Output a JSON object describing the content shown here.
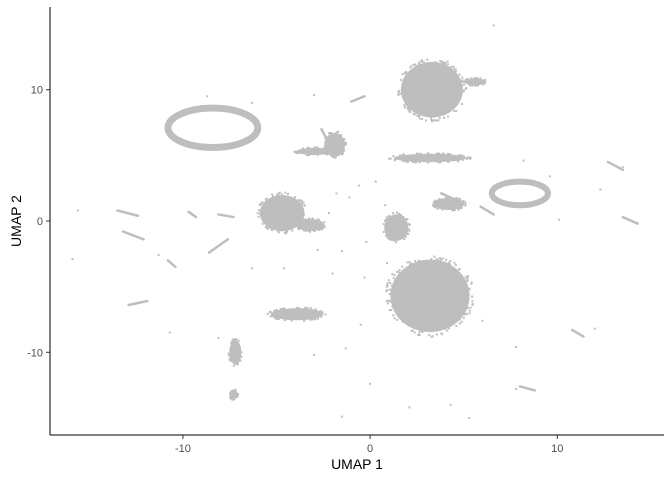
{
  "chart_data": {
    "type": "scatter",
    "title": "",
    "xlabel": "UMAP 1",
    "ylabel": "UMAP 2",
    "xlim": [
      -17.1,
      15.7
    ],
    "ylim": [
      -16.3,
      16.3
    ],
    "x_ticks": [
      -10,
      0,
      10
    ],
    "y_ticks": [
      -10,
      0,
      10
    ],
    "x_tick_labels": [
      "-10",
      "0",
      "10"
    ],
    "y_tick_labels": [
      "-10",
      "0",
      "10"
    ],
    "grid": false,
    "legend": "none",
    "point_color": "#bebebe",
    "clusters": [
      {
        "name": "top-blob",
        "kind": "blob",
        "cx": 3.3,
        "cy": 10.0,
        "rx": 1.8,
        "ry": 2.3
      },
      {
        "name": "top-blob-tail",
        "kind": "blob",
        "cx": 5.6,
        "cy": 10.6,
        "rx": 0.6,
        "ry": 0.3
      },
      {
        "name": "left-ring",
        "kind": "ring",
        "cx": -8.4,
        "cy": 7.1,
        "rx": 2.4,
        "ry": 1.5
      },
      {
        "name": "mid-left-cluster",
        "kind": "blob",
        "cx": -1.9,
        "cy": 5.8,
        "rx": 0.6,
        "ry": 1.0
      },
      {
        "name": "mid-left-band",
        "kind": "blob",
        "cx": -3.0,
        "cy": 5.3,
        "rx": 1.0,
        "ry": 0.3
      },
      {
        "name": "center-streak",
        "kind": "blob",
        "cx": 3.2,
        "cy": 4.8,
        "rx": 2.1,
        "ry": 0.35
      },
      {
        "name": "left-center-blob",
        "kind": "blob",
        "cx": -4.7,
        "cy": 0.6,
        "rx": 1.3,
        "ry": 1.5
      },
      {
        "name": "left-center-arm",
        "kind": "blob",
        "cx": -3.2,
        "cy": -0.3,
        "rx": 0.8,
        "ry": 0.5
      },
      {
        "name": "center-chain",
        "kind": "blob",
        "cx": 1.4,
        "cy": -0.5,
        "rx": 0.7,
        "ry": 1.1
      },
      {
        "name": "bottom-blob",
        "kind": "blob",
        "cx": 3.2,
        "cy": -5.7,
        "rx": 2.3,
        "ry": 3.0
      },
      {
        "name": "right-loop",
        "kind": "ring",
        "cx": 8.0,
        "cy": 2.1,
        "rx": 1.5,
        "ry": 0.9
      },
      {
        "name": "right-arm",
        "kind": "blob",
        "cx": 4.2,
        "cy": 1.3,
        "rx": 0.9,
        "ry": 0.5
      },
      {
        "name": "lower-left-patch",
        "kind": "blob",
        "cx": -7.2,
        "cy": -10.0,
        "rx": 0.35,
        "ry": 1.0
      },
      {
        "name": "bottom-left-patch",
        "kind": "blob",
        "cx": -7.3,
        "cy": -13.2,
        "rx": 0.25,
        "ry": 0.4
      },
      {
        "name": "lower-left-strand",
        "kind": "blob",
        "cx": -3.9,
        "cy": -7.1,
        "rx": 1.5,
        "ry": 0.5
      }
    ],
    "strands": [
      {
        "name": "strand-a",
        "x1": -8.6,
        "y1": -2.4,
        "x2": -7.6,
        "y2": -1.4
      },
      {
        "name": "strand-b",
        "x1": -12.9,
        "y1": -6.4,
        "x2": -11.9,
        "y2": -6.1
      },
      {
        "name": "strand-c",
        "x1": -13.5,
        "y1": 0.8,
        "x2": -12.4,
        "y2": 0.4
      },
      {
        "name": "strand-d",
        "x1": -13.2,
        "y1": -0.8,
        "x2": -12.1,
        "y2": -1.4
      },
      {
        "name": "strand-e",
        "x1": 12.7,
        "y1": 4.5,
        "x2": 13.5,
        "y2": 3.9
      },
      {
        "name": "strand-f",
        "x1": 13.5,
        "y1": 0.3,
        "x2": 14.3,
        "y2": -0.2
      },
      {
        "name": "strand-g",
        "x1": 10.8,
        "y1": -8.3,
        "x2": 11.4,
        "y2": -8.8
      },
      {
        "name": "strand-h",
        "x1": 8.0,
        "y1": -12.6,
        "x2": 8.8,
        "y2": -12.9
      },
      {
        "name": "strand-i",
        "x1": -1.0,
        "y1": 9.1,
        "x2": -0.3,
        "y2": 9.5
      },
      {
        "name": "strand-j",
        "x1": -8.1,
        "y1": 0.5,
        "x2": -7.3,
        "y2": 0.3
      },
      {
        "name": "strand-k",
        "x1": 3.8,
        "y1": 2.1,
        "x2": 4.6,
        "y2": 1.6
      },
      {
        "name": "strand-l",
        "x1": -2.6,
        "y1": 7.0,
        "x2": -2.3,
        "y2": 6.2
      },
      {
        "name": "strand-m",
        "x1": -9.7,
        "y1": 0.7,
        "x2": -9.3,
        "y2": 0.3
      },
      {
        "name": "strand-n",
        "x1": -10.8,
        "y1": -3.0,
        "x2": -10.4,
        "y2": -3.5
      },
      {
        "name": "strand-o",
        "x1": 5.9,
        "y1": 1.1,
        "x2": 6.6,
        "y2": 0.5
      }
    ],
    "scatter_points": [
      [
        6.6,
        14.9
      ],
      [
        -15.6,
        0.8
      ],
      [
        -15.9,
        -2.9
      ],
      [
        10.1,
        0.1
      ],
      [
        12.0,
        -8.2
      ],
      [
        7.8,
        -12.8
      ],
      [
        4.3,
        -14.0
      ],
      [
        2.1,
        -14.2
      ],
      [
        -1.5,
        -14.9
      ],
      [
        5.3,
        -15.0
      ],
      [
        -8.1,
        -8.9
      ],
      [
        -10.7,
        -8.5
      ],
      [
        -1.3,
        -9.7
      ],
      [
        6.0,
        -7.6
      ],
      [
        7.8,
        -9.6
      ],
      [
        12.3,
        2.4
      ],
      [
        13.5,
        4.1
      ],
      [
        -3.0,
        -10.2
      ],
      [
        -0.5,
        -7.9
      ],
      [
        -4.6,
        -3.6
      ],
      [
        -6.3,
        -3.6
      ],
      [
        0.8,
        1.2
      ],
      [
        -1.1,
        1.8
      ],
      [
        -0.6,
        2.7
      ],
      [
        -0.2,
        -1.6
      ],
      [
        -1.5,
        -2.3
      ],
      [
        -2.0,
        -4.0
      ],
      [
        -0.3,
        -4.3
      ],
      [
        0.9,
        -3.2
      ],
      [
        -2.8,
        -2.2
      ],
      [
        -8.7,
        9.5
      ],
      [
        -6.3,
        9.0
      ],
      [
        -2.2,
        0.6
      ],
      [
        0.3,
        3.0
      ],
      [
        8.2,
        4.6
      ],
      [
        -11.3,
        -2.6
      ],
      [
        9.6,
        3.4
      ],
      [
        -1.8,
        2.1
      ],
      [
        0.0,
        -12.4
      ],
      [
        -3.0,
        9.6
      ]
    ]
  }
}
